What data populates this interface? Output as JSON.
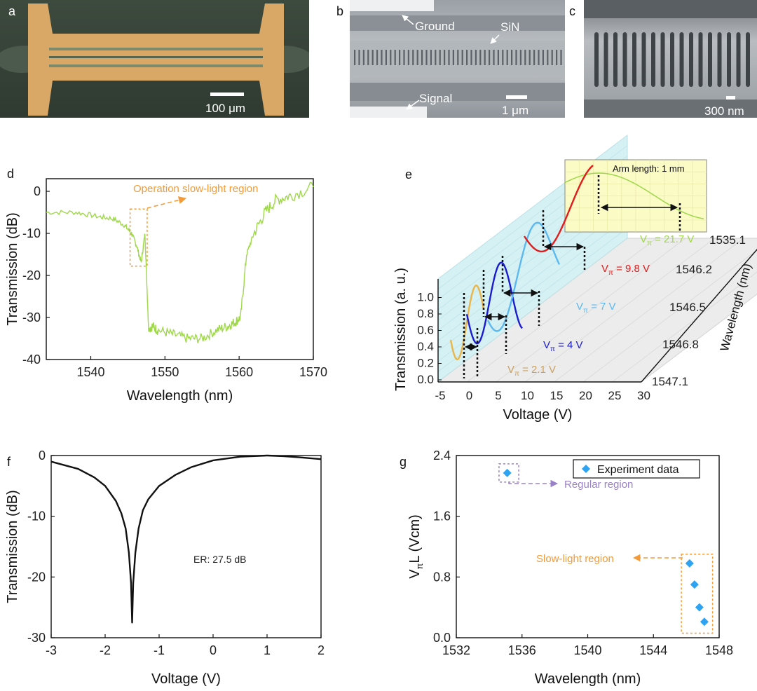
{
  "colors": {
    "green": "#9fd84a",
    "orange": "#f39a3a",
    "red": "#e21b1b",
    "lightblue": "#5cb8f0",
    "darkblue": "#1b1bd0",
    "yellow": "#e8b64a",
    "blue_marker": "#2ea3f2",
    "purple": "#9a82c8",
    "gold": "#c9a063"
  },
  "panel_labels": {
    "a": "a",
    "b": "b",
    "c": "c",
    "d": "d",
    "e": "e",
    "f": "f",
    "g": "g"
  },
  "panel_a": {
    "scale_label": "100 μm"
  },
  "panel_b": {
    "ground": "Ground",
    "sin": "SiN",
    "signal": "Signal",
    "scale_label": "1 μm"
  },
  "panel_c": {
    "scale_label": "300 nm"
  },
  "chart_data": [
    {
      "panel": "d",
      "type": "line",
      "xlabel": "Wavelength (nm)",
      "ylabel": "Transmission (dB)",
      "xlim": [
        1534,
        1570
      ],
      "ylim": [
        -40,
        3
      ],
      "xticks": [
        1540,
        1550,
        1560,
        1570
      ],
      "yticks": [
        0,
        -10,
        -20,
        -30,
        -40
      ],
      "annotation": "Operation slow-light region",
      "series": [
        {
          "name": "transmission",
          "x": [
            1534,
            1538,
            1541,
            1543,
            1544.5,
            1545.5,
            1546.2,
            1546.8,
            1547.3,
            1547.8,
            1548.3,
            1549,
            1551,
            1553,
            1555,
            1557,
            1558.5,
            1559.5,
            1560.2,
            1561,
            1562,
            1563.5,
            1565,
            1567,
            1570
          ],
          "y": [
            -5,
            -5,
            -6,
            -6.5,
            -8,
            -10,
            -13,
            -17,
            -10,
            -33,
            -32,
            -33,
            -34,
            -35,
            -35,
            -33,
            -32,
            -31,
            -30,
            -15,
            -10,
            -5,
            -2,
            -1,
            1
          ]
        }
      ]
    },
    {
      "panel": "e",
      "type": "line",
      "xlabel": "Voltage (V)",
      "ylabel": "Transmission (a. u.)",
      "zlabel": "Wavelength (nm)",
      "xticks": [
        -5,
        0,
        5,
        10,
        15,
        20,
        25,
        30
      ],
      "yticks": [
        "0.0",
        "0.2",
        "0.4",
        "0.6",
        "0.8",
        "1.0"
      ],
      "zticks": [
        "1547.1",
        "1546.8",
        "1546.5",
        "1546.2",
        "1535.1"
      ],
      "inset_title": "Arm length: 1 mm",
      "series": [
        {
          "name": "Vπ = 2.1 V",
          "wavelength": "1547.1",
          "vpi": 2.1
        },
        {
          "name": "Vπ = 4 V",
          "wavelength": "1546.8",
          "vpi": 4
        },
        {
          "name": "Vπ = 7 V",
          "wavelength": "1546.5",
          "vpi": 7
        },
        {
          "name": "Vπ = 9.8 V",
          "wavelength": "1546.2",
          "vpi": 9.8
        },
        {
          "name": "Vπ = 21.7 V",
          "wavelength": "1535.1",
          "vpi": 21.7
        }
      ]
    },
    {
      "panel": "f",
      "type": "line",
      "xlabel": "Voltage (V)",
      "ylabel": "Transmission (dB)",
      "xlim": [
        -3,
        2
      ],
      "ylim": [
        -30,
        0
      ],
      "xticks": [
        -3,
        -2,
        -1,
        0,
        1,
        2
      ],
      "yticks": [
        0,
        -10,
        -20,
        -30
      ],
      "annotation": "ER: 27.5 dB",
      "series": [
        {
          "name": "transmission",
          "x": [
            -3,
            -2.5,
            -2.2,
            -2.0,
            -1.8,
            -1.7,
            -1.62,
            -1.56,
            -1.52,
            -1.5,
            -1.48,
            -1.44,
            -1.38,
            -1.3,
            -1.2,
            -1.0,
            -0.7,
            -0.4,
            0,
            0.5,
            1.0,
            1.3,
            1.6,
            2.0
          ],
          "y": [
            -1,
            -2.2,
            -3.6,
            -5,
            -7.5,
            -9.5,
            -12,
            -16,
            -21,
            -27.5,
            -21,
            -16,
            -12,
            -9,
            -7.2,
            -5,
            -3.2,
            -1.9,
            -0.8,
            -0.2,
            0,
            -0.1,
            -0.3,
            -0.6
          ]
        }
      ]
    },
    {
      "panel": "g",
      "type": "scatter",
      "xlabel": "Wavelength (nm)",
      "ylabel": "V",
      "ylabel_sub": "π",
      "ylabel_end": "L (Vcm)",
      "xlim": [
        1532,
        1548
      ],
      "ylim": [
        0,
        2.4
      ],
      "xticks": [
        1532,
        1536,
        1540,
        1544,
        1548
      ],
      "yticks": [
        0.0,
        0.8,
        1.6,
        2.4
      ],
      "ytick_labels": [
        "0.0",
        "0.8",
        "1.6",
        "2.4"
      ],
      "legend": "Experiment data",
      "annotation_regular": "Regular region",
      "annotation_slow": "Slow-light region",
      "series": [
        {
          "name": "Experiment data",
          "x": [
            1535.1,
            1546.2,
            1546.5,
            1546.8,
            1547.1
          ],
          "y": [
            2.17,
            0.98,
            0.7,
            0.4,
            0.21
          ]
        }
      ]
    }
  ]
}
